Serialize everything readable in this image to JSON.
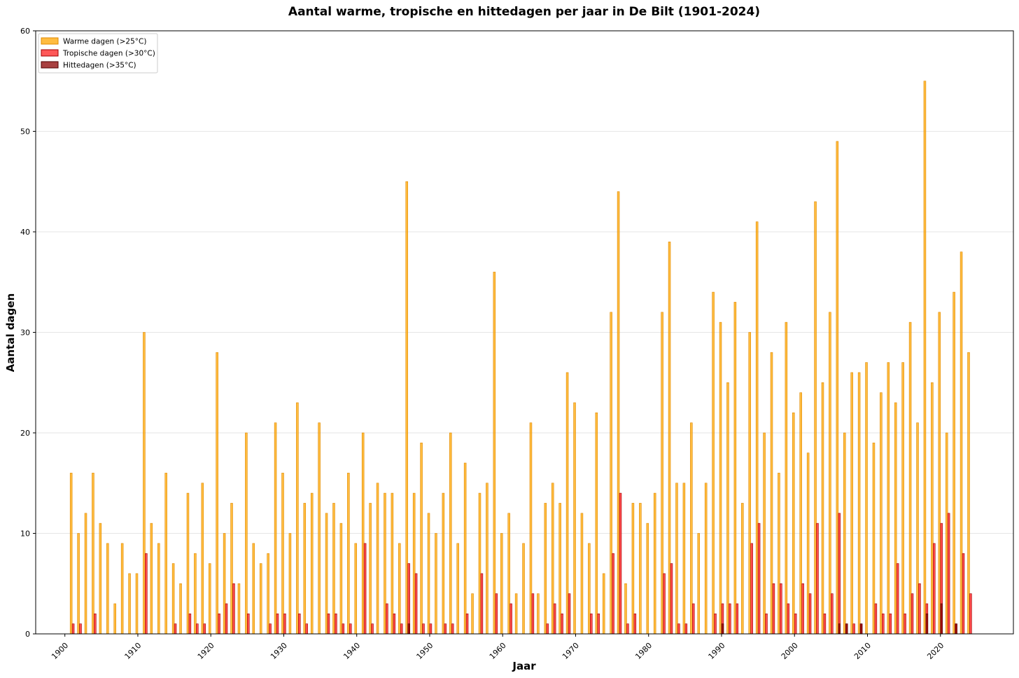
{
  "colors": {
    "warm": "#FFA500",
    "warm_edge": "#E08A00",
    "tropical": "#FF2020",
    "tropical_edge": "#A00000",
    "heat": "#8B0000",
    "heat_edge": "#500000",
    "grid": "#e6e6e6"
  },
  "chart_data": {
    "type": "bar",
    "title": "Aantal warme, tropische en hittedagen per jaar in De Bilt (1901-2024)",
    "xlabel": "Jaar",
    "ylabel": "Aantal dagen",
    "xlim": [
      1896,
      2030
    ],
    "ylim": [
      0,
      60
    ],
    "x_ticks": [
      1900,
      1910,
      1920,
      1930,
      1940,
      1950,
      1960,
      1970,
      1980,
      1990,
      2000,
      2010,
      2020
    ],
    "y_ticks": [
      0,
      10,
      20,
      30,
      40,
      50,
      60
    ],
    "grid": "horizontal",
    "legend_position": "top-left",
    "x_start": 1901,
    "series": [
      {
        "name": "Warme dagen (>25°C)",
        "values": [
          16,
          10,
          12,
          16,
          11,
          9,
          3,
          9,
          6,
          6,
          30,
          11,
          9,
          16,
          7,
          5,
          14,
          8,
          15,
          7,
          28,
          10,
          13,
          5,
          20,
          9,
          7,
          8,
          21,
          16,
          10,
          23,
          13,
          14,
          21,
          12,
          13,
          11,
          16,
          9,
          20,
          13,
          15,
          14,
          14,
          9,
          45,
          14,
          19,
          12,
          10,
          14,
          20,
          9,
          17,
          4,
          14,
          15,
          36,
          10,
          12,
          4,
          9,
          21,
          4,
          13,
          15,
          13,
          26,
          23,
          12,
          9,
          22,
          6,
          32,
          44,
          5,
          13,
          13,
          11,
          14,
          32,
          39,
          15,
          15,
          21,
          10,
          15,
          34,
          31,
          25,
          33,
          13,
          30,
          41,
          20,
          28,
          16,
          31,
          22,
          24,
          18,
          43,
          25,
          32,
          49,
          20,
          26,
          26,
          27,
          19,
          24,
          27,
          23,
          27,
          31,
          21,
          55,
          25,
          32,
          20,
          34,
          38,
          28
        ]
      },
      {
        "name": "Tropische dagen (>30°C)",
        "values": [
          1,
          1,
          0,
          2,
          0,
          0,
          0,
          0,
          0,
          0,
          8,
          0,
          0,
          0,
          1,
          0,
          2,
          1,
          1,
          0,
          2,
          3,
          5,
          0,
          2,
          0,
          0,
          1,
          2,
          2,
          0,
          2,
          1,
          0,
          0,
          2,
          2,
          1,
          1,
          0,
          9,
          1,
          0,
          3,
          2,
          1,
          7,
          6,
          1,
          1,
          0,
          1,
          1,
          0,
          2,
          0,
          6,
          0,
          4,
          0,
          3,
          0,
          0,
          4,
          0,
          1,
          3,
          2,
          4,
          0,
          0,
          2,
          2,
          0,
          8,
          14,
          1,
          2,
          0,
          0,
          0,
          6,
          7,
          1,
          1,
          3,
          0,
          0,
          2,
          3,
          3,
          3,
          0,
          9,
          11,
          2,
          5,
          5,
          3,
          2,
          5,
          4,
          11,
          2,
          4,
          12,
          1,
          1,
          1,
          0,
          3,
          2,
          2,
          7,
          2,
          4,
          5,
          3,
          9,
          11,
          12,
          1,
          8,
          4
        ]
      },
      {
        "name": "Hittedagen (>35°C)",
        "values": [
          0,
          0,
          0,
          0,
          0,
          0,
          0,
          0,
          0,
          0,
          0,
          0,
          0,
          0,
          0,
          0,
          0,
          0,
          0,
          0,
          0,
          0,
          0,
          0,
          0,
          0,
          0,
          0,
          0,
          0,
          0,
          0,
          0,
          0,
          0,
          0,
          0,
          0,
          0,
          0,
          0,
          0,
          0,
          0,
          0,
          0,
          1,
          0,
          0,
          0,
          0,
          0,
          0,
          0,
          0,
          0,
          0,
          0,
          0,
          0,
          0,
          0,
          0,
          0,
          0,
          0,
          0,
          0,
          0,
          0,
          0,
          0,
          0,
          0,
          0,
          0,
          0,
          0,
          0,
          0,
          0,
          0,
          0,
          0,
          0,
          0,
          0,
          0,
          0,
          1,
          0,
          0,
          0,
          0,
          0,
          0,
          0,
          0,
          0,
          0,
          0,
          0,
          0,
          0,
          0,
          1,
          1,
          0,
          1,
          0,
          0,
          0,
          0,
          0,
          0,
          0,
          0,
          2,
          0,
          3,
          0,
          1,
          0,
          0
        ]
      }
    ]
  }
}
